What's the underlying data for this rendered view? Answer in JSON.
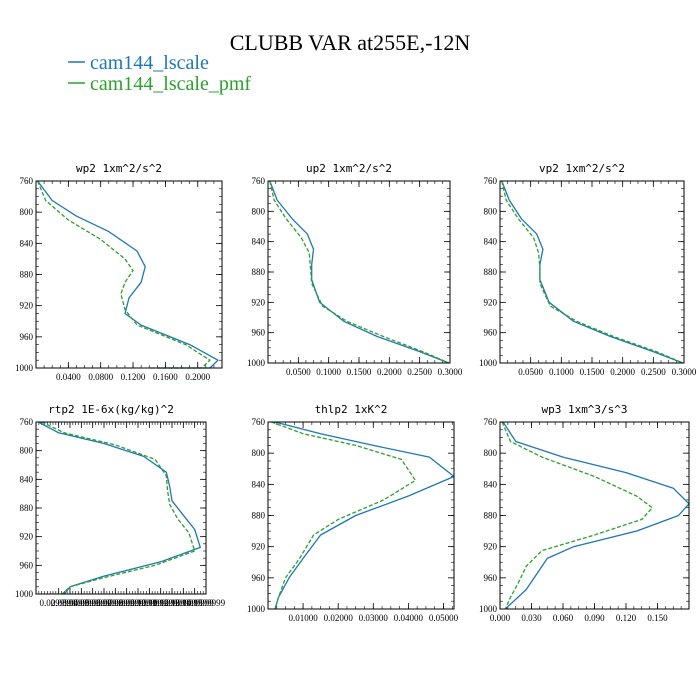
{
  "title": "CLUBB VAR at255E,-12N",
  "colors": {
    "series1": "#1f77b4",
    "series2": "#2ca02c"
  },
  "legend": [
    {
      "label": "cam144_lscale",
      "color": "#1f77b4",
      "dash": "solid"
    },
    {
      "label": "cam144_lscale_pmf",
      "color": "#2ca02c",
      "dash": "dashed"
    }
  ],
  "chart_data": [
    {
      "type": "line",
      "title": "wp2  1xm^2/s^2",
      "xlim": [
        0,
        0.23
      ],
      "ylim": [
        760,
        1000
      ],
      "y_inverted": true,
      "xticks": [
        "0.0400",
        "0.0800",
        "0.1200",
        "0.1600",
        "0.2000"
      ],
      "xtick_values": [
        0.04,
        0.08,
        0.12,
        0.16,
        0.2
      ],
      "yticks": [
        760,
        800,
        840,
        880,
        920,
        960,
        1000
      ],
      "series": [
        {
          "name": "cam144_lscale",
          "x": [
            0.002,
            0.02,
            0.05,
            0.09,
            0.125,
            0.135,
            0.13,
            0.115,
            0.11,
            0.13,
            0.19,
            0.225,
            0.215,
            0.15
          ],
          "y": [
            760,
            785,
            805,
            825,
            850,
            870,
            890,
            910,
            930,
            945,
            970,
            990,
            1000,
            1000
          ]
        },
        {
          "name": "cam144_lscale_pmf",
          "x": [
            0.002,
            0.012,
            0.04,
            0.08,
            0.11,
            0.12,
            0.11,
            0.105,
            0.11,
            0.125,
            0.185,
            0.215,
            0.205,
            0.14
          ],
          "y": [
            760,
            785,
            810,
            835,
            860,
            875,
            890,
            905,
            925,
            945,
            970,
            990,
            1000,
            1000
          ]
        }
      ]
    },
    {
      "type": "line",
      "title": "up2  1xm^2/s^2",
      "xlim": [
        0,
        0.3
      ],
      "ylim": [
        760,
        1000
      ],
      "y_inverted": true,
      "xticks": [
        "0.0500",
        "0.1000",
        "0.1500",
        "0.2000",
        "0.2500",
        "0.3000"
      ],
      "xtick_values": [
        0.05,
        0.1,
        0.15,
        0.2,
        0.25,
        0.3
      ],
      "yticks": [
        760,
        800,
        840,
        880,
        920,
        960,
        1000
      ],
      "series": [
        {
          "name": "cam144_lscale",
          "x": [
            0.003,
            0.015,
            0.04,
            0.065,
            0.075,
            0.072,
            0.072,
            0.085,
            0.125,
            0.18,
            0.25,
            0.298
          ],
          "y": [
            760,
            785,
            810,
            830,
            850,
            870,
            890,
            920,
            945,
            965,
            985,
            1000
          ]
        },
        {
          "name": "cam144_lscale_pmf",
          "x": [
            0.003,
            0.01,
            0.03,
            0.055,
            0.068,
            0.07,
            0.072,
            0.09,
            0.13,
            0.19,
            0.255,
            0.298
          ],
          "y": [
            760,
            785,
            810,
            835,
            855,
            875,
            895,
            925,
            945,
            965,
            985,
            1000
          ]
        }
      ]
    },
    {
      "type": "line",
      "title": "vp2  1xm^2/s^2",
      "xlim": [
        0,
        0.3
      ],
      "ylim": [
        760,
        1000
      ],
      "y_inverted": true,
      "xticks": [
        "0.0500",
        "0.1000",
        "0.1500",
        "0.2000",
        "0.2500",
        "0.3000"
      ],
      "xtick_values": [
        0.05,
        0.1,
        0.15,
        0.2,
        0.25,
        0.3
      ],
      "yticks": [
        760,
        800,
        840,
        880,
        920,
        960,
        1000
      ],
      "series": [
        {
          "name": "cam144_lscale",
          "x": [
            0.003,
            0.015,
            0.035,
            0.06,
            0.07,
            0.065,
            0.065,
            0.08,
            0.12,
            0.18,
            0.25,
            0.298
          ],
          "y": [
            760,
            785,
            810,
            830,
            850,
            870,
            890,
            920,
            945,
            965,
            985,
            1000
          ]
        },
        {
          "name": "cam144_lscale_pmf",
          "x": [
            0.003,
            0.01,
            0.03,
            0.055,
            0.063,
            0.065,
            0.065,
            0.082,
            0.125,
            0.185,
            0.255,
            0.298
          ],
          "y": [
            760,
            785,
            810,
            835,
            855,
            875,
            895,
            925,
            945,
            965,
            985,
            1000
          ]
        }
      ]
    },
    {
      "type": "line",
      "title": "rtp2  1E-6x(kg/kg)^2",
      "xlim": [
        0.01,
        0.16
      ],
      "ylim": [
        760,
        1000
      ],
      "y_inverted": true,
      "xticks": [
        "0.0299999",
        "0.0399999",
        "0.0499999",
        "0.0599999",
        "0.0699999",
        "0.0799999",
        "0.0899999",
        "0.0999999",
        "0.1099999",
        "0.1199999",
        "0.1299999",
        "0.1399999",
        "0.1499999",
        "0.1599999"
      ],
      "xtick_values": [
        0.03,
        0.04,
        0.05,
        0.06,
        0.07,
        0.08,
        0.09,
        0.1,
        0.11,
        0.12,
        0.13,
        0.14,
        0.15,
        0.16
      ],
      "yticks": [
        760,
        800,
        840,
        880,
        920,
        960,
        1000
      ],
      "series": [
        {
          "name": "cam144_lscale",
          "x": [
            0.012,
            0.03,
            0.07,
            0.105,
            0.125,
            0.128,
            0.13,
            0.14,
            0.15,
            0.155,
            0.12,
            0.07,
            0.04,
            0.035
          ],
          "y": [
            760,
            775,
            790,
            808,
            830,
            850,
            870,
            890,
            910,
            935,
            955,
            975,
            990,
            1000
          ]
        },
        {
          "name": "cam144_lscale_pmf",
          "x": [
            0.015,
            0.035,
            0.08,
            0.115,
            0.125,
            0.126,
            0.128,
            0.135,
            0.145,
            0.15,
            0.115,
            0.068,
            0.04,
            0.033
          ],
          "y": [
            760,
            775,
            792,
            812,
            835,
            855,
            875,
            895,
            915,
            940,
            960,
            978,
            990,
            1000
          ]
        }
      ]
    },
    {
      "type": "line",
      "title": "thlp2  1xK^2",
      "xlim": [
        0,
        0.053
      ],
      "ylim": [
        760,
        1000
      ],
      "y_inverted": true,
      "xticks": [
        "0.01000",
        "0.02000",
        "0.03000",
        "0.04000",
        "0.05000"
      ],
      "xtick_values": [
        0.01,
        0.02,
        0.03,
        0.04,
        0.05
      ],
      "yticks": [
        760,
        800,
        840,
        880,
        920,
        960,
        1000
      ],
      "series": [
        {
          "name": "cam144_lscale",
          "x": [
            0.002,
            0.015,
            0.03,
            0.046,
            0.053,
            0.04,
            0.025,
            0.015,
            0.01,
            0.006,
            0.003,
            0.002
          ],
          "y": [
            760,
            775,
            790,
            805,
            830,
            855,
            880,
            905,
            935,
            960,
            985,
            1000
          ]
        },
        {
          "name": "cam144_lscale_pmf",
          "x": [
            0.001,
            0.01,
            0.025,
            0.038,
            0.042,
            0.033,
            0.02,
            0.013,
            0.009,
            0.005,
            0.003,
            0.002
          ],
          "y": [
            760,
            775,
            790,
            808,
            835,
            860,
            885,
            905,
            935,
            960,
            985,
            1000
          ]
        }
      ]
    },
    {
      "type": "line",
      "title": "wp3  1xm^3/s^3",
      "xlim": [
        0,
        0.18
      ],
      "ylim": [
        760,
        1000
      ],
      "y_inverted": true,
      "xticks": [
        "0.000",
        "0.030",
        "0.060",
        "0.090",
        "0.120",
        "0.150"
      ],
      "xtick_values": [
        0.0,
        0.03,
        0.06,
        0.09,
        0.12,
        0.15
      ],
      "yticks": [
        760,
        800,
        840,
        880,
        920,
        960,
        1000
      ],
      "series": [
        {
          "name": "cam144_lscale",
          "x": [
            0.003,
            0.015,
            0.06,
            0.12,
            0.165,
            0.18,
            0.17,
            0.13,
            0.07,
            0.045,
            0.035,
            0.025,
            0.005
          ],
          "y": [
            760,
            785,
            805,
            825,
            845,
            865,
            880,
            900,
            920,
            935,
            955,
            975,
            1000
          ]
        },
        {
          "name": "cam144_lscale_pmf",
          "x": [
            0.002,
            0.01,
            0.04,
            0.09,
            0.13,
            0.145,
            0.135,
            0.09,
            0.04,
            0.025,
            0.018,
            0.01,
            0.005
          ],
          "y": [
            760,
            785,
            805,
            830,
            855,
            870,
            885,
            905,
            925,
            945,
            965,
            985,
            1000
          ]
        }
      ]
    }
  ]
}
